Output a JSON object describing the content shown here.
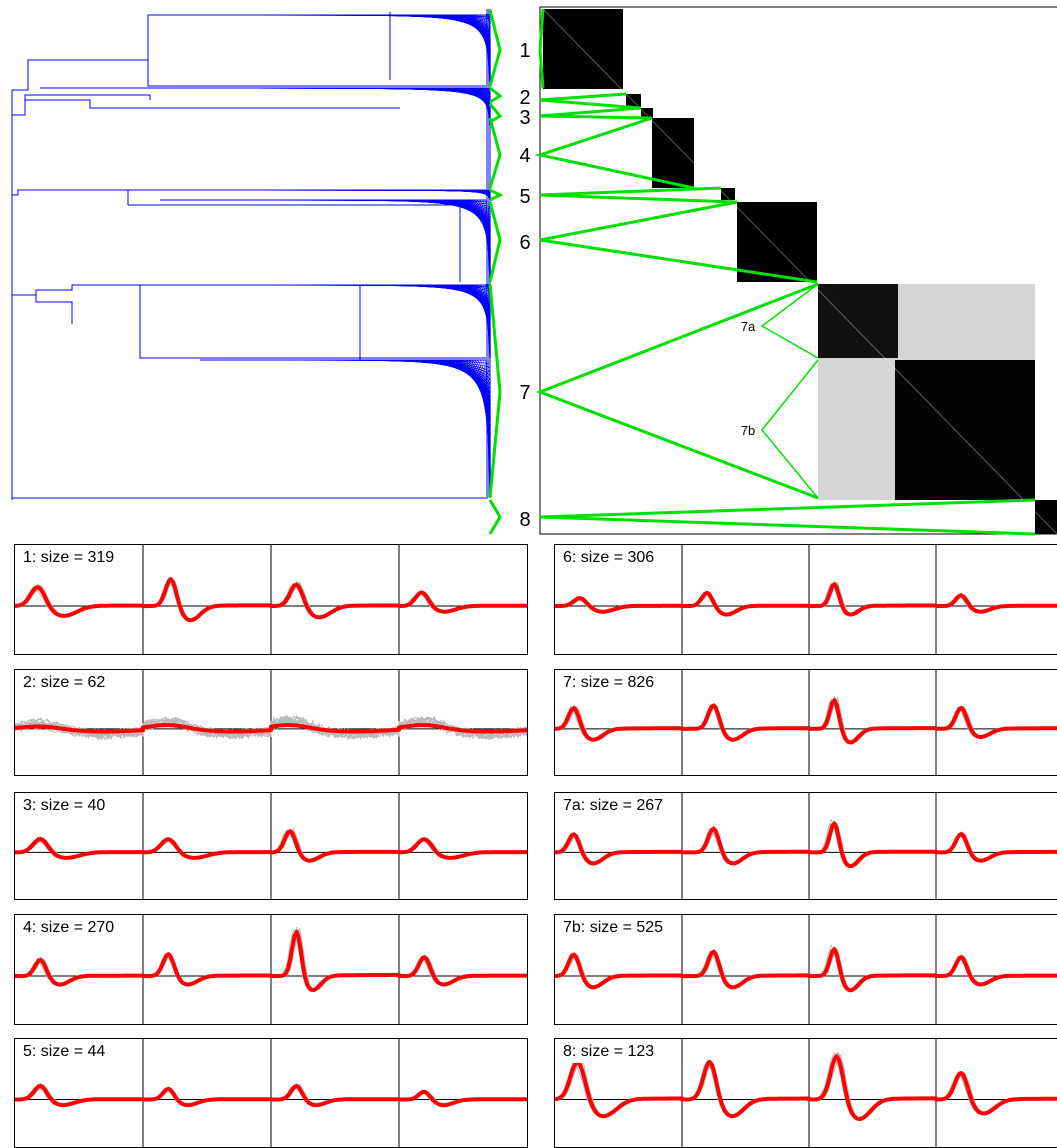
{
  "colors": {
    "dendrogram": "#0000ff",
    "link": "#00e000",
    "mean": "#ff0000",
    "trace": "#b9b9b9",
    "matrix": "#000000"
  },
  "chart_data": [
    {
      "type": "dendrogram",
      "title": "",
      "cluster_labels": [
        "1",
        "2",
        "3",
        "4",
        "5",
        "6",
        "7",
        "8"
      ],
      "subcluster_labels": [
        "7a",
        "7b"
      ]
    },
    {
      "type": "heatmap",
      "title": "",
      "description_blocks": [
        "1",
        "2",
        "3",
        "4",
        "5",
        "6",
        "7",
        "8"
      ],
      "sub_blocks": [
        "7a",
        "7b"
      ]
    },
    {
      "type": "line",
      "panels": [
        {
          "label": "1",
          "size": 319
        },
        {
          "label": "2",
          "size": 62
        },
        {
          "label": "3",
          "size": 40
        },
        {
          "label": "4",
          "size": 270
        },
        {
          "label": "5",
          "size": 44
        },
        {
          "label": "6",
          "size": 306
        },
        {
          "label": "7",
          "size": 826
        },
        {
          "label": "7a",
          "size": 267
        },
        {
          "label": "7b",
          "size": 525
        },
        {
          "label": "8",
          "size": 123
        }
      ],
      "channels_per_panel": 4
    }
  ],
  "panels": {
    "p1": {
      "title": "1: size = 319"
    },
    "p2": {
      "title": "2: size = 62"
    },
    "p3": {
      "title": "3: size = 40"
    },
    "p4": {
      "title": "4: size = 270"
    },
    "p5": {
      "title": "5: size = 44"
    },
    "p6": {
      "title": "6: size = 306"
    },
    "p7": {
      "title": "7: size = 826"
    },
    "p7a": {
      "title": "7a: size = 267"
    },
    "p7b": {
      "title": "7b: size = 525"
    },
    "p8": {
      "title": "8: size = 123"
    }
  }
}
